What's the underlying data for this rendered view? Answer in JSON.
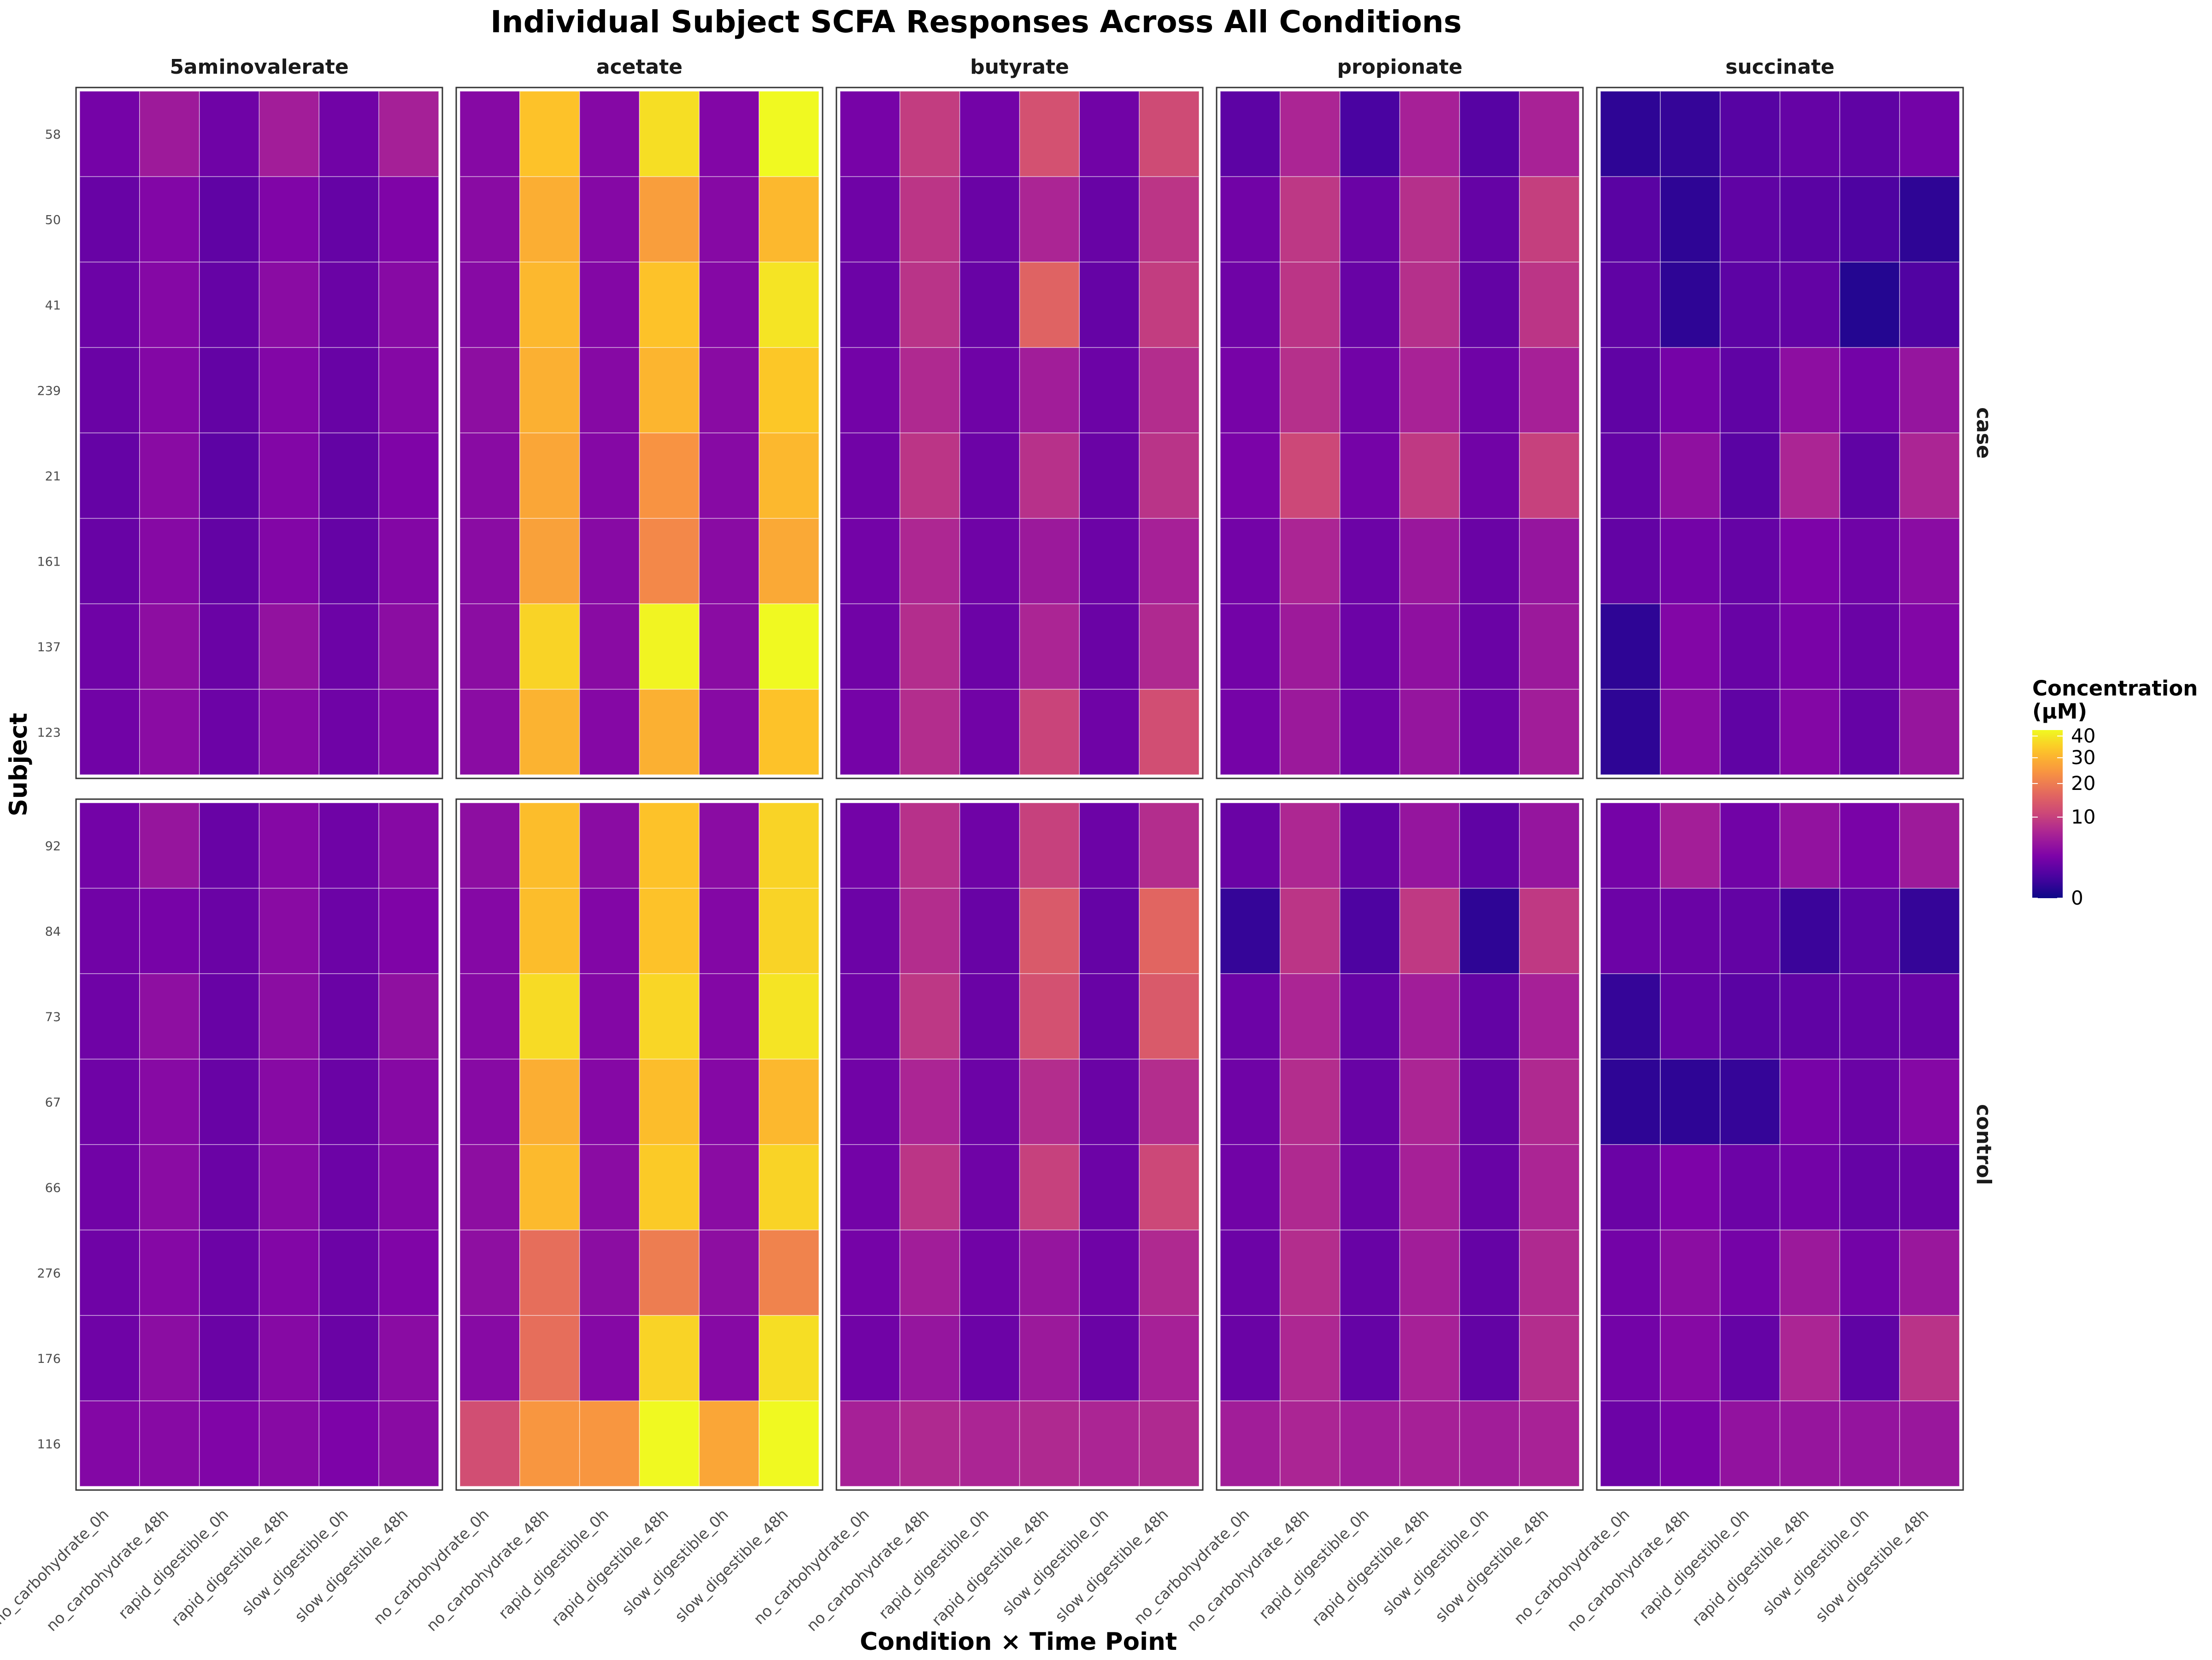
{
  "chart_data": {
    "type": "heatmap",
    "title": "Individual Subject SCFA Responses Across All Conditions",
    "xlabel": "Condition × Time Point",
    "ylabel": "Subject",
    "columns": [
      "5aminovalerate",
      "acetate",
      "butyrate",
      "propionate",
      "succinate"
    ],
    "x": [
      "no_carbohydrate_0h",
      "no_carbohydrate_48h",
      "rapid_digestible_0h",
      "rapid_digestible_48h",
      "slow_digestible_0h",
      "slow_digestible_48h"
    ],
    "legend": {
      "title_line1": "Concentration",
      "title_line2": "(µM)",
      "position": "right",
      "scale": "sqrt",
      "range": [
        0,
        43
      ],
      "ticks": [
        0,
        10,
        20,
        30,
        40
      ],
      "colormap": "plasma"
    },
    "panels": [
      {
        "name": "case",
        "subjects": [
          "58",
          "50",
          "41",
          "239",
          "21",
          "161",
          "137",
          "123"
        ],
        "values": {
          "5aminovalerate": [
            [
              2.3,
              5.2,
              2.0,
              5.6,
              2.1,
              5.9
            ],
            [
              1.7,
              3.0,
              1.4,
              2.9,
              1.6,
              2.8
            ],
            [
              1.9,
              3.2,
              1.6,
              3.6,
              1.8,
              3.4
            ],
            [
              1.8,
              3.1,
              1.5,
              3.0,
              1.7,
              3.2
            ],
            [
              1.6,
              3.5,
              1.3,
              3.0,
              1.5,
              2.8
            ],
            [
              1.7,
              3.3,
              1.5,
              3.0,
              1.6,
              3.1
            ],
            [
              2.0,
              3.8,
              1.8,
              4.2,
              1.9,
              3.7
            ],
            [
              2.1,
              3.6,
              1.9,
              3.3,
              2.0,
              3.0
            ]
          ],
          "acetate": [
            [
              3.3,
              33.0,
              3.2,
              38.0,
              3.0,
              43.0
            ],
            [
              3.5,
              29.0,
              3.2,
              26.0,
              3.3,
              31.0
            ],
            [
              3.4,
              31.0,
              3.1,
              33.0,
              3.2,
              39.0
            ],
            [
              3.8,
              29.5,
              3.3,
              30.5,
              3.5,
              34.0
            ],
            [
              3.5,
              27.5,
              3.2,
              24.0,
              3.4,
              31.0
            ],
            [
              3.6,
              26.5,
              3.4,
              22.0,
              3.5,
              28.0
            ],
            [
              3.7,
              36.0,
              3.5,
              42.0,
              3.6,
              43.0
            ],
            [
              3.6,
              30.0,
              3.2,
              29.5,
              3.4,
              33.0
            ]
          ],
          "butyrate": [
            [
              2.4,
              9.5,
              2.2,
              12.5,
              2.1,
              11.5
            ],
            [
              2.0,
              8.5,
              1.8,
              6.5,
              1.7,
              8.5
            ],
            [
              1.9,
              8.3,
              1.7,
              15.5,
              1.6,
              9.5
            ],
            [
              2.2,
              7.0,
              2.0,
              5.5,
              1.9,
              7.5
            ],
            [
              2.1,
              8.5,
              1.9,
              8.0,
              1.8,
              8.3
            ],
            [
              2.2,
              6.8,
              2.0,
              5.0,
              1.9,
              6.0
            ],
            [
              2.1,
              7.5,
              1.9,
              6.5,
              1.8,
              7.0
            ],
            [
              2.3,
              7.5,
              2.1,
              10.5,
              2.0,
              12.0
            ]
          ],
          "propionate": [
            [
              1.3,
              6.5,
              0.7,
              6.0,
              1.1,
              6.2
            ],
            [
              2.1,
              8.8,
              1.8,
              7.8,
              1.6,
              9.8
            ],
            [
              2.0,
              8.5,
              1.7,
              7.8,
              1.5,
              8.5
            ],
            [
              2.4,
              7.8,
              2.1,
              6.2,
              2.0,
              6.0
            ],
            [
              2.6,
              11.0,
              2.3,
              9.0,
              2.1,
              10.0
            ],
            [
              2.2,
              6.5,
              1.9,
              4.8,
              1.8,
              4.5
            ],
            [
              2.2,
              5.2,
              1.9,
              4.0,
              1.8,
              5.0
            ],
            [
              2.3,
              5.0,
              2.0,
              4.5,
              1.9,
              5.5
            ]
          ],
          "succinate": [
            [
              0.2,
              0.3,
              1.1,
              1.6,
              1.4,
              2.2
            ],
            [
              1.2,
              0.2,
              1.4,
              1.2,
              0.8,
              0.2
            ],
            [
              1.4,
              0.2,
              1.3,
              1.5,
              0.1,
              0.9
            ],
            [
              1.4,
              2.3,
              1.4,
              3.8,
              2.2,
              4.5
            ],
            [
              1.6,
              4.0,
              1.2,
              6.5,
              1.4,
              6.5
            ],
            [
              1.5,
              2.2,
              1.6,
              2.7,
              2.0,
              3.6
            ],
            [
              0.2,
              3.0,
              1.7,
              2.5,
              1.8,
              3.0
            ],
            [
              0.2,
              3.6,
              1.4,
              3.1,
              1.6,
              4.6
            ]
          ]
        }
      },
      {
        "name": "control",
        "subjects": [
          "92",
          "84",
          "73",
          "67",
          "66",
          "276",
          "176",
          "116"
        ],
        "values": {
          "5aminovalerate": [
            [
              2.2,
              4.6,
              1.7,
              3.2,
              2.0,
              3.3
            ],
            [
              2.1,
              2.4,
              1.8,
              3.5,
              1.9,
              2.8
            ],
            [
              2.0,
              3.9,
              1.7,
              3.7,
              1.8,
              4.0
            ],
            [
              2.0,
              3.4,
              1.7,
              3.4,
              1.8,
              3.3
            ],
            [
              2.1,
              3.6,
              1.8,
              3.4,
              1.9,
              3.1
            ],
            [
              2.0,
              3.2,
              1.9,
              3.0,
              1.9,
              2.9
            ],
            [
              2.0,
              3.7,
              1.8,
              3.3,
              1.8,
              3.6
            ],
            [
              3.1,
              3.4,
              2.9,
              3.4,
              2.7,
              3.5
            ]
          ],
          "acetate": [
            [
              3.8,
              32.0,
              3.6,
              33.0,
              3.6,
              36.0
            ],
            [
              3.2,
              32.0,
              3.0,
              33.0,
              3.1,
              36.0
            ],
            [
              3.3,
              37.5,
              3.1,
              36.5,
              3.1,
              39.0
            ],
            [
              3.4,
              29.0,
              3.2,
              32.0,
              3.2,
              31.0
            ],
            [
              3.8,
              31.5,
              3.6,
              34.5,
              3.6,
              36.0
            ],
            [
              3.9,
              17.5,
              3.7,
              20.0,
              3.8,
              21.0
            ],
            [
              3.4,
              17.5,
              3.2,
              36.0,
              3.3,
              38.0
            ],
            [
              12.0,
              24.5,
              24.5,
              43.0,
              27.5,
              43.0
            ]
          ],
          "butyrate": [
            [
              2.2,
              8.0,
              2.0,
              10.0,
              1.9,
              7.5
            ],
            [
              1.9,
              7.5,
              1.7,
              14.0,
              1.6,
              16.0
            ],
            [
              2.0,
              8.8,
              1.8,
              12.5,
              1.7,
              14.0
            ],
            [
              2.1,
              6.5,
              1.9,
              7.5,
              1.8,
              7.5
            ],
            [
              2.2,
              8.5,
              2.0,
              10.0,
              1.9,
              11.0
            ],
            [
              2.3,
              5.5,
              2.1,
              4.5,
              2.0,
              7.0
            ],
            [
              2.1,
              4.5,
              1.9,
              5.0,
              1.8,
              6.0
            ],
            [
              6.0,
              7.0,
              6.5,
              7.0,
              6.5,
              7.0
            ]
          ],
          "propionate": [
            [
              1.8,
              6.8,
              1.5,
              4.5,
              1.4,
              4.5
            ],
            [
              0.3,
              8.5,
              0.8,
              9.0,
              0.2,
              9.0
            ],
            [
              1.9,
              6.5,
              1.6,
              5.5,
              1.5,
              6.0
            ],
            [
              2.0,
              7.5,
              1.7,
              6.5,
              1.5,
              7.0
            ],
            [
              2.1,
              7.0,
              1.8,
              6.0,
              1.7,
              6.5
            ],
            [
              1.9,
              7.5,
              1.7,
              5.5,
              1.6,
              7.0
            ],
            [
              1.8,
              6.8,
              1.6,
              6.0,
              1.5,
              7.5
            ],
            [
              5.5,
              6.5,
              5.5,
              6.0,
              5.5,
              6.2
            ]
          ],
          "succinate": [
            [
              2.3,
              5.7,
              2.1,
              4.2,
              2.5,
              5.2
            ],
            [
              1.9,
              1.8,
              1.5,
              0.4,
              1.3,
              0.3
            ],
            [
              0.3,
              1.6,
              1.2,
              1.4,
              1.6,
              1.7
            ],
            [
              0.2,
              0.2,
              0.3,
              2.4,
              1.8,
              3.2
            ],
            [
              1.8,
              2.7,
              1.9,
              2.2,
              1.6,
              1.8
            ],
            [
              2.2,
              3.7,
              2.3,
              5.0,
              2.2,
              4.8
            ],
            [
              2.2,
              3.3,
              1.6,
              6.5,
              1.4,
              8.2
            ],
            [
              1.9,
              2.5,
              4.2,
              4.6,
              4.4,
              4.8
            ]
          ]
        }
      }
    ]
  }
}
